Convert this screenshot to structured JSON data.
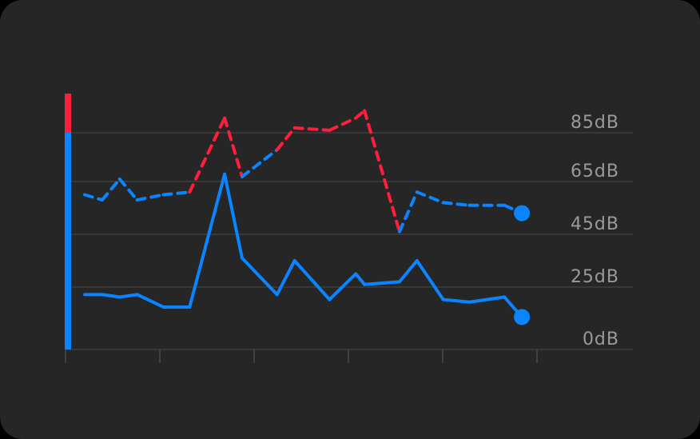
{
  "colors": {
    "background": "#262626",
    "grid": "#4a4a4a",
    "axis_text": "#9a9a9a",
    "series": "#0a84ff",
    "alert": "#ff1e3c"
  },
  "chart_data": {
    "type": "line",
    "title": "",
    "xlabel": "",
    "ylabel": "",
    "yticks": [
      {
        "value": 0,
        "label": "0dB"
      },
      {
        "value": 25,
        "label": "25dB"
      },
      {
        "value": 45,
        "label": "45dB"
      },
      {
        "value": 65,
        "label": "65dB"
      },
      {
        "value": 85,
        "label": "85dB"
      }
    ],
    "xtick_count": 6,
    "x_count": 27,
    "grid": true,
    "alert_threshold": 85,
    "level_bar": {
      "value": 85,
      "alert_value": 101
    },
    "series": [
      {
        "style": "dashed",
        "values": [
          60,
          58,
          66,
          58,
          60,
          61,
          91,
          67,
          78,
          87,
          86,
          91,
          94,
          46,
          61,
          57,
          56,
          56,
          53
        ]
      },
      {
        "style": "solid",
        "values": [
          22,
          22,
          21,
          22,
          17,
          17,
          68,
          36,
          22,
          35,
          20,
          30,
          26,
          27,
          35,
          20,
          19,
          21,
          13
        ]
      }
    ],
    "x_positions": [
      0,
      1,
      2,
      3,
      4.5,
      6,
      8,
      9,
      11,
      12,
      14,
      15.5,
      16,
      18,
      19,
      20.5,
      22,
      24,
      25
    ],
    "end_marker": true
  }
}
